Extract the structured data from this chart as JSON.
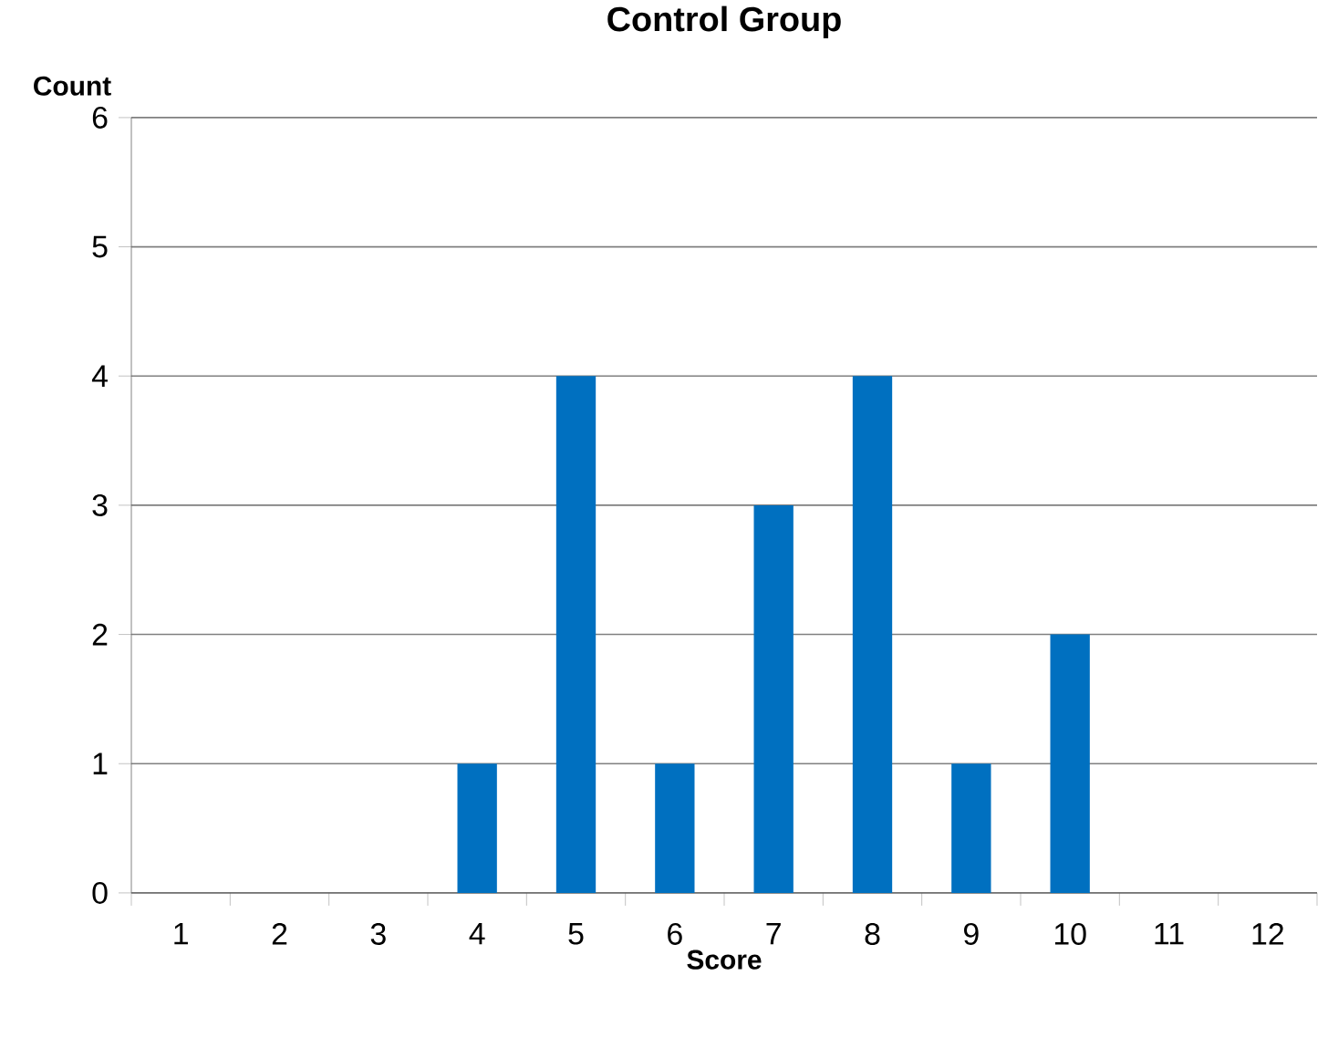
{
  "chart_data": {
    "type": "bar",
    "title": "Control Group",
    "xlabel": "Score",
    "ylabel": "Count",
    "categories": [
      "1",
      "2",
      "3",
      "4",
      "5",
      "6",
      "7",
      "8",
      "9",
      "10",
      "11",
      "12"
    ],
    "values": [
      0,
      0,
      0,
      1,
      4,
      1,
      3,
      4,
      1,
      2,
      0,
      0
    ],
    "color": "#0070c0",
    "ylim": [
      0,
      6
    ],
    "yticks": [
      0,
      1,
      2,
      3,
      4,
      5,
      6
    ],
    "grid": "y"
  }
}
